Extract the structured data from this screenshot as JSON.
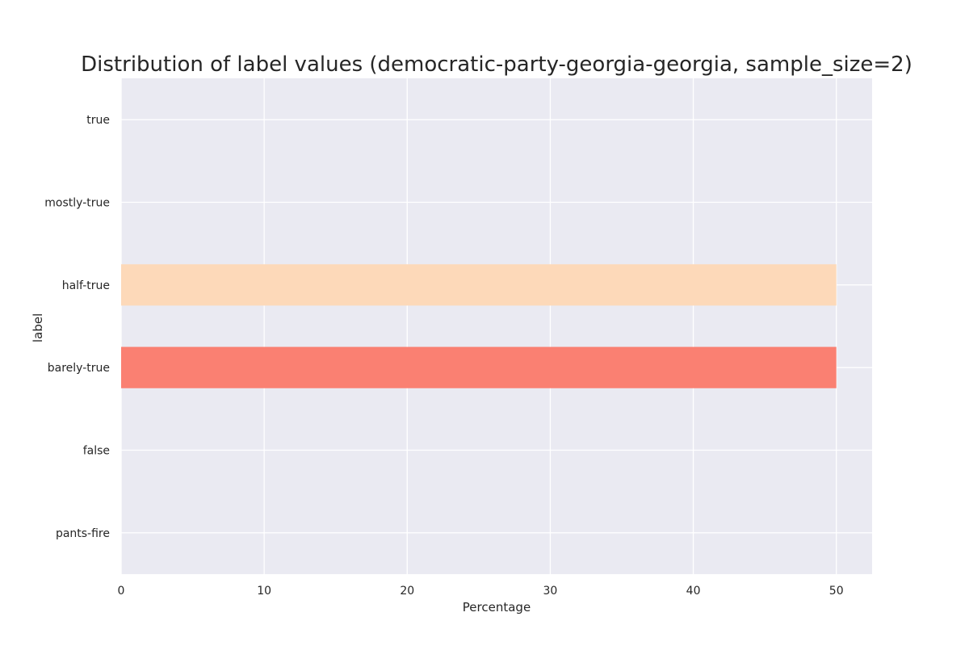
{
  "chart_data": {
    "type": "bar",
    "orientation": "horizontal",
    "title": "Distribution of label values (democratic-party-georgia-georgia, sample_size=2)",
    "xlabel": "Percentage",
    "ylabel": "label",
    "categories": [
      "true",
      "mostly-true",
      "half-true",
      "barely-true",
      "false",
      "pants-fire"
    ],
    "values": [
      0,
      0,
      50,
      50,
      0,
      0
    ],
    "bar_colors": [
      "#fdd9b9",
      "#fdd9b9",
      "#fdd9b9",
      "#fa8072",
      "#fdd9b9",
      "#fdd9b9"
    ],
    "xlim": [
      0,
      52.5
    ],
    "xticks": [
      0,
      10,
      20,
      30,
      40,
      50
    ],
    "grid": true,
    "background_color": "#eaeaf2",
    "grid_color": "#ffffff"
  }
}
